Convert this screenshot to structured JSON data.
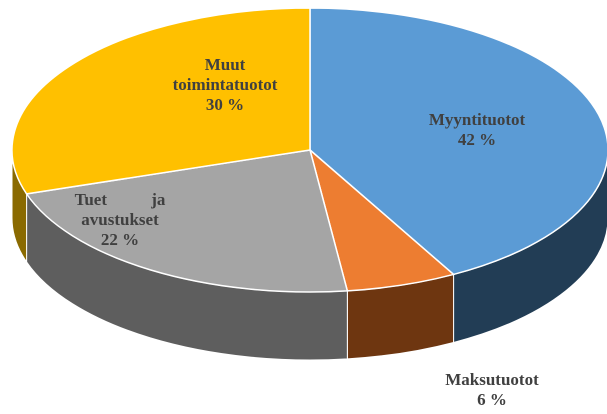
{
  "chart_data": {
    "type": "pie",
    "categories": [
      "Myyntituotot",
      "Maksutuotot",
      "Tuet ja avustukset",
      "Muut toimintatuotot"
    ],
    "values": [
      42,
      6,
      22,
      30
    ],
    "value_labels": [
      "42 %",
      "6 %",
      "22 %",
      "30 %"
    ],
    "colors": [
      "#5b9bd5",
      "#ed7d31",
      "#a5a5a5",
      "#ffc000"
    ],
    "side_colors": [
      "#223d55",
      "#6e3610",
      "#5e5e5e",
      "#8a6a00"
    ]
  }
}
